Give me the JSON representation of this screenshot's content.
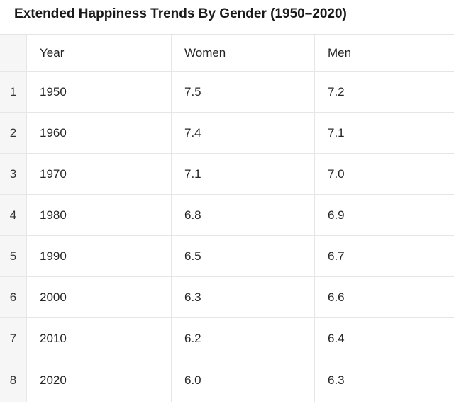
{
  "title": "Extended Happiness Trends By Gender (1950–2020)",
  "table": {
    "columns": [
      "",
      "Year",
      "Women",
      "Men"
    ],
    "rows": [
      {
        "index": "1",
        "year": "1950",
        "women": "7.5",
        "men": "7.2"
      },
      {
        "index": "2",
        "year": "1960",
        "women": "7.4",
        "men": "7.1"
      },
      {
        "index": "3",
        "year": "1970",
        "women": "7.1",
        "men": "7.0"
      },
      {
        "index": "4",
        "year": "1980",
        "women": "6.8",
        "men": "6.9"
      },
      {
        "index": "5",
        "year": "1990",
        "women": "6.5",
        "men": "6.7"
      },
      {
        "index": "6",
        "year": "2000",
        "women": "6.3",
        "men": "6.6"
      },
      {
        "index": "7",
        "year": "2010",
        "women": "6.2",
        "men": "6.4"
      },
      {
        "index": "8",
        "year": "2020",
        "women": "6.0",
        "men": "6.3"
      }
    ]
  },
  "chart_data": {
    "type": "table",
    "title": "Extended Happiness Trends By Gender (1950–2020)",
    "columns": [
      "Year",
      "Women",
      "Men"
    ],
    "x": [
      1950,
      1960,
      1970,
      1980,
      1990,
      2000,
      2010,
      2020
    ],
    "series": [
      {
        "name": "Women",
        "values": [
          7.5,
          7.4,
          7.1,
          6.8,
          6.5,
          6.3,
          6.2,
          6.0
        ]
      },
      {
        "name": "Men",
        "values": [
          7.2,
          7.1,
          7.0,
          6.9,
          6.7,
          6.6,
          6.4,
          6.3
        ]
      }
    ]
  }
}
